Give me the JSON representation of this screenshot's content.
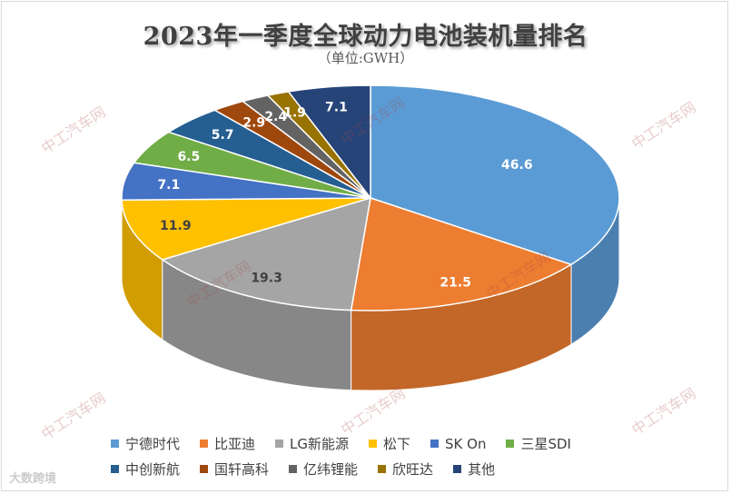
{
  "title": "2023年一季度全球动力电池装机量排名",
  "subtitle": "（单位:GWH）",
  "watermark_text": "中工汽车网",
  "brand_text": "大数跨境",
  "chart_data": {
    "type": "pie",
    "style": "3d",
    "unit": "GWH",
    "categories": [
      "宁德时代",
      "比亚迪",
      "LG新能源",
      "松下",
      "SK On",
      "三星SDI",
      "中创新航",
      "国轩高科",
      "亿纬锂能",
      "欣旺达",
      "其他"
    ],
    "values": [
      46.6,
      21.5,
      19.3,
      11.9,
      7.1,
      6.5,
      5.7,
      2.9,
      2.4,
      1.9,
      7.1
    ],
    "labels": [
      "46.6",
      "21.5",
      "19.3",
      "11.9",
      "7.1",
      "6.5",
      "5.7",
      "2.9",
      "2.4",
      "1.9",
      "7.1"
    ],
    "colors": [
      "#5b9bd5",
      "#ed7d31",
      "#a5a5a5",
      "#ffc000",
      "#4472c4",
      "#70ad47",
      "#255e91",
      "#9e480e",
      "#636363",
      "#997300",
      "#264478"
    ],
    "legend_position": "bottom"
  }
}
